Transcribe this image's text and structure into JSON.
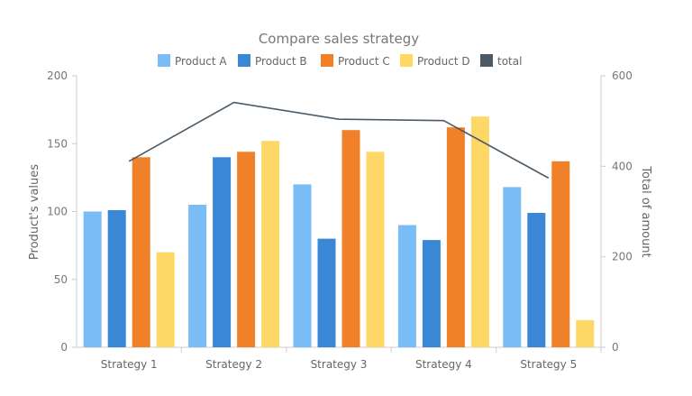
{
  "chart_data": {
    "type": "bar",
    "title": "Compare sales strategy",
    "categories": [
      "Strategy 1",
      "Strategy 2",
      "Strategy 3",
      "Strategy 4",
      "Strategy 5"
    ],
    "series": [
      {
        "name": "Product A",
        "type": "bar",
        "axis": "left",
        "color": "#7abcf5",
        "values": [
          100,
          105,
          120,
          90,
          118
        ]
      },
      {
        "name": "Product B",
        "type": "bar",
        "axis": "left",
        "color": "#3a87d6",
        "values": [
          101,
          140,
          80,
          79,
          99
        ]
      },
      {
        "name": "Product C",
        "type": "bar",
        "axis": "left",
        "color": "#f08128",
        "values": [
          140,
          144,
          160,
          162,
          137
        ]
      },
      {
        "name": "Product D",
        "type": "bar",
        "axis": "left",
        "color": "#fed866",
        "values": [
          70,
          152,
          144,
          170,
          20
        ]
      },
      {
        "name": "total",
        "type": "line",
        "axis": "right",
        "color": "#4a5a66",
        "values": [
          411,
          541,
          504,
          501,
          374
        ]
      }
    ],
    "ylabel": "Product's values",
    "ylim": [
      0,
      200
    ],
    "yticks": [
      0,
      50,
      100,
      150,
      200
    ],
    "y2label": "Total of amount",
    "y2lim": [
      0,
      600
    ],
    "y2ticks": [
      0,
      200,
      400,
      600
    ],
    "legend": "top",
    "grid": false
  }
}
